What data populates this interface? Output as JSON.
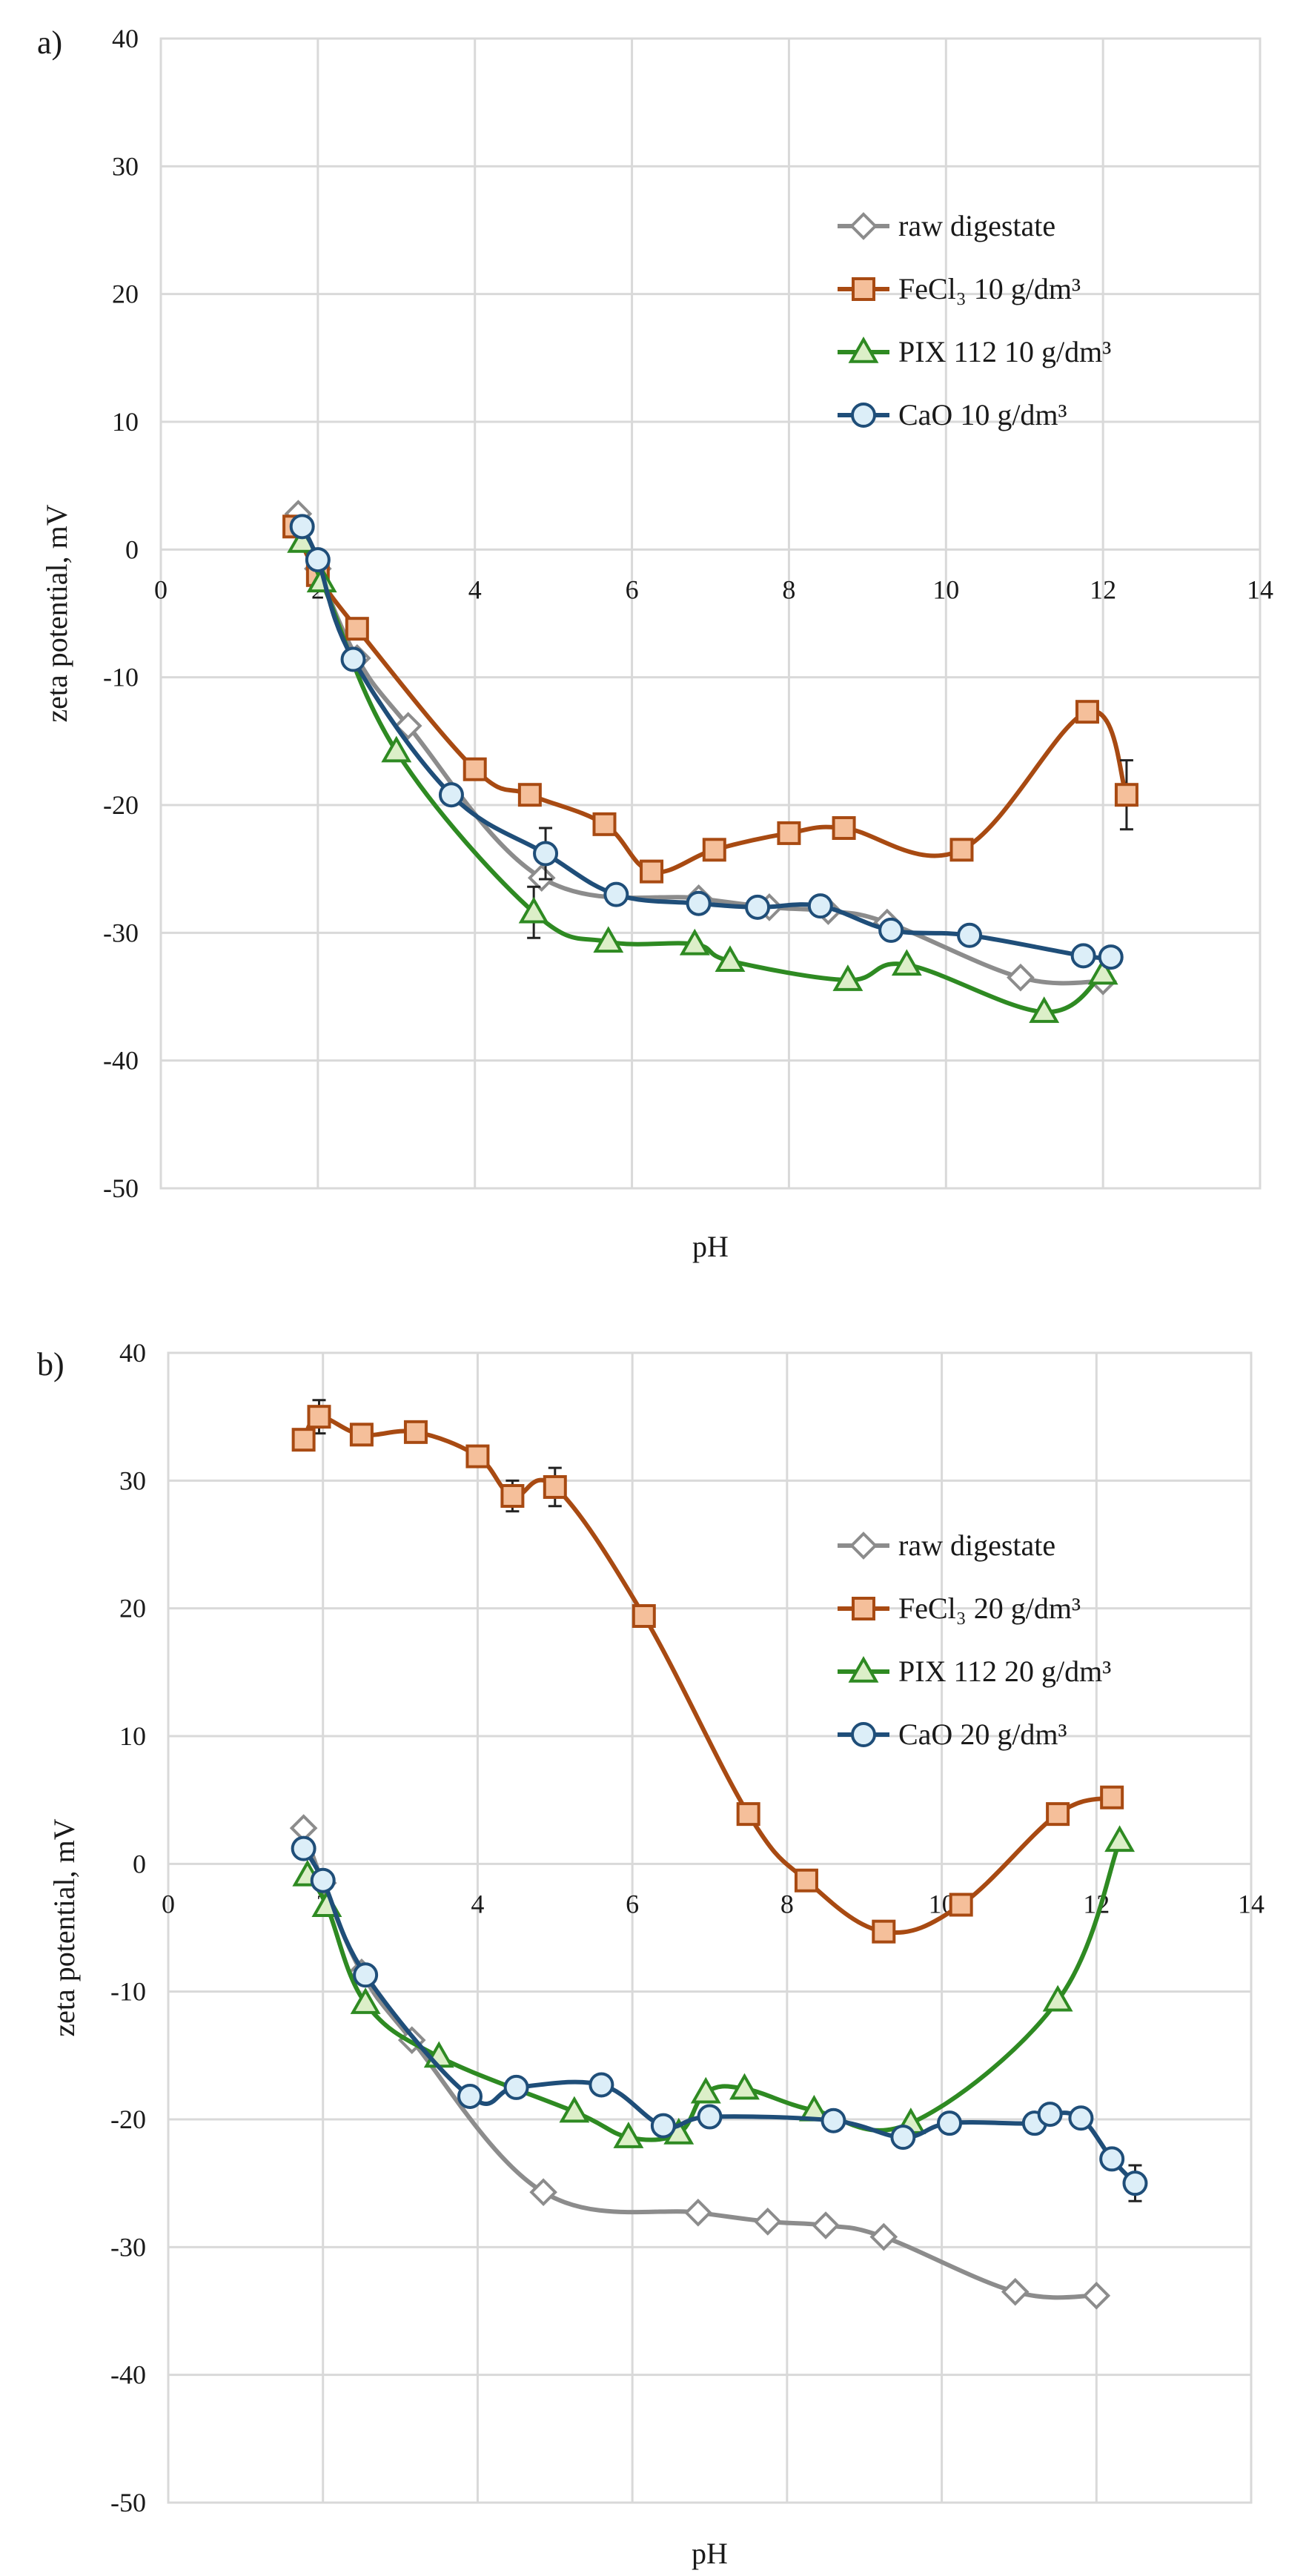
{
  "chart_data": [
    {
      "type": "line",
      "panel_label": "a)",
      "xlabel": "pH",
      "ylabel": "zeta potential, mV",
      "xlim": [
        0,
        14
      ],
      "ylim": [
        -50,
        40
      ],
      "x_ticks": [
        "0",
        "2",
        "4",
        "6",
        "8",
        "10",
        "12",
        "14"
      ],
      "y_ticks": [
        "40",
        "30",
        "20",
        "10",
        "0",
        "-10",
        "-20",
        "-30",
        "-40",
        "-50"
      ],
      "legend_position": "top-right",
      "series": [
        {
          "name": "raw digestate",
          "color": "#8c8c8c",
          "marker": "diamond",
          "marker_fill": "#ffffff",
          "x": [
            1.75,
            2.0,
            2.5,
            3.15,
            4.85,
            6.85,
            7.75,
            8.5,
            9.25,
            10.95,
            12.0
          ],
          "y": [
            2.8,
            -1.5,
            -8.5,
            -13.8,
            -25.7,
            -27.3,
            -28.0,
            -28.3,
            -29.2,
            -33.5,
            -33.8
          ]
        },
        {
          "name": "FeCl₃ 10 g/dm³",
          "color": "#a84a12",
          "marker": "square",
          "marker_fill": "#f5bf9a",
          "x": [
            1.7,
            2.0,
            2.5,
            4.0,
            4.7,
            5.65,
            6.25,
            7.05,
            8.0,
            8.7,
            10.2,
            11.8,
            12.3
          ],
          "y": [
            1.8,
            -2.0,
            -6.2,
            -17.2,
            -19.2,
            -21.5,
            -25.2,
            -23.5,
            -22.2,
            -21.8,
            -23.5,
            -12.7,
            -19.2
          ],
          "error_bars": [
            {
              "x": 12.3,
              "y": -19.2,
              "err": 2.7
            }
          ]
        },
        {
          "name": "PIX 112 10 g/dm³",
          "color": "#2e8a22",
          "marker": "triangle",
          "marker_fill": "#dcefc8",
          "x": [
            1.8,
            2.05,
            3.0,
            4.75,
            5.7,
            6.8,
            7.25,
            8.75,
            9.5,
            11.25,
            12.0
          ],
          "y": [
            0.6,
            -2.5,
            -15.8,
            -28.4,
            -30.7,
            -30.9,
            -32.2,
            -33.7,
            -32.5,
            -36.2,
            -33.2
          ],
          "error_bars": [
            {
              "x": 4.75,
              "y": -28.4,
              "err": 2.0
            }
          ]
        },
        {
          "name": "CaO 10 g/dm³",
          "color": "#1f4e79",
          "marker": "circle",
          "marker_fill": "#dceef8",
          "x": [
            1.8,
            2.0,
            2.45,
            3.7,
            4.9,
            5.8,
            6.85,
            7.6,
            8.4,
            9.3,
            10.3,
            11.75,
            12.1
          ],
          "y": [
            1.8,
            -0.8,
            -8.6,
            -19.2,
            -23.8,
            -27.0,
            -27.7,
            -28.0,
            -27.9,
            -29.8,
            -30.2,
            -31.8,
            -31.9
          ],
          "error_bars": [
            {
              "x": 4.9,
              "y": -23.8,
              "err": 2.0
            }
          ]
        }
      ]
    },
    {
      "type": "line",
      "panel_label": "b)",
      "xlabel": "pH",
      "ylabel": "zeta potential, mV",
      "xlim": [
        0,
        14
      ],
      "ylim": [
        -50,
        40
      ],
      "x_ticks": [
        "0",
        "2",
        "4",
        "6",
        "8",
        "10",
        "12",
        "14"
      ],
      "y_ticks": [
        "40",
        "30",
        "20",
        "10",
        "0",
        "-10",
        "-20",
        "-30",
        "-40",
        "-50"
      ],
      "legend_position": "top-right",
      "series": [
        {
          "name": "raw digestate",
          "color": "#8c8c8c",
          "marker": "diamond",
          "marker_fill": "#ffffff",
          "x": [
            1.75,
            2.0,
            2.5,
            3.15,
            4.85,
            6.85,
            7.75,
            8.5,
            9.25,
            10.95,
            12.0
          ],
          "y": [
            2.8,
            -1.5,
            -8.5,
            -13.8,
            -25.7,
            -27.3,
            -28.0,
            -28.3,
            -29.2,
            -33.5,
            -33.8
          ]
        },
        {
          "name": "FeCl₃ 20 g/dm³",
          "color": "#a84a12",
          "marker": "square",
          "marker_fill": "#f5bf9a",
          "x": [
            1.75,
            1.95,
            2.5,
            3.2,
            4.0,
            4.45,
            5.0,
            6.15,
            7.5,
            8.25,
            9.25,
            10.25,
            11.5,
            12.2
          ],
          "y": [
            33.2,
            35.0,
            33.6,
            33.8,
            31.9,
            28.8,
            29.5,
            19.4,
            3.9,
            -1.3,
            -5.3,
            -3.2,
            3.9,
            5.2
          ],
          "error_bars": [
            {
              "x": 1.95,
              "y": 35.0,
              "err": 1.3
            },
            {
              "x": 4.45,
              "y": 28.8,
              "err": 1.2
            },
            {
              "x": 5.0,
              "y": 29.5,
              "err": 1.5
            }
          ]
        },
        {
          "name": "PIX 112 20 g/dm³",
          "color": "#2e8a22",
          "marker": "triangle",
          "marker_fill": "#dcefc8",
          "x": [
            1.8,
            2.05,
            2.55,
            3.5,
            5.25,
            5.95,
            6.6,
            6.95,
            7.45,
            8.35,
            9.6,
            11.5,
            12.3
          ],
          "y": [
            -0.9,
            -3.3,
            -10.9,
            -15.1,
            -19.4,
            -21.4,
            -21.1,
            -17.9,
            -17.6,
            -19.3,
            -20.3,
            -10.7,
            1.8
          ]
        },
        {
          "name": "CaO 20 g/dm³",
          "color": "#1f4e79",
          "marker": "circle",
          "marker_fill": "#dceef8",
          "x": [
            1.75,
            2.0,
            2.55,
            3.9,
            4.5,
            5.6,
            6.4,
            7.0,
            8.6,
            9.5,
            10.1,
            11.2,
            11.4,
            11.8,
            12.2,
            12.5
          ],
          "y": [
            1.2,
            -1.3,
            -8.7,
            -18.2,
            -17.5,
            -17.3,
            -20.5,
            -19.8,
            -20.1,
            -21.4,
            -20.3,
            -20.3,
            -19.6,
            -19.9,
            -23.1,
            -25.0
          ],
          "error_bars": [
            {
              "x": 12.5,
              "y": -25.0,
              "err": 1.4
            }
          ]
        }
      ]
    }
  ]
}
